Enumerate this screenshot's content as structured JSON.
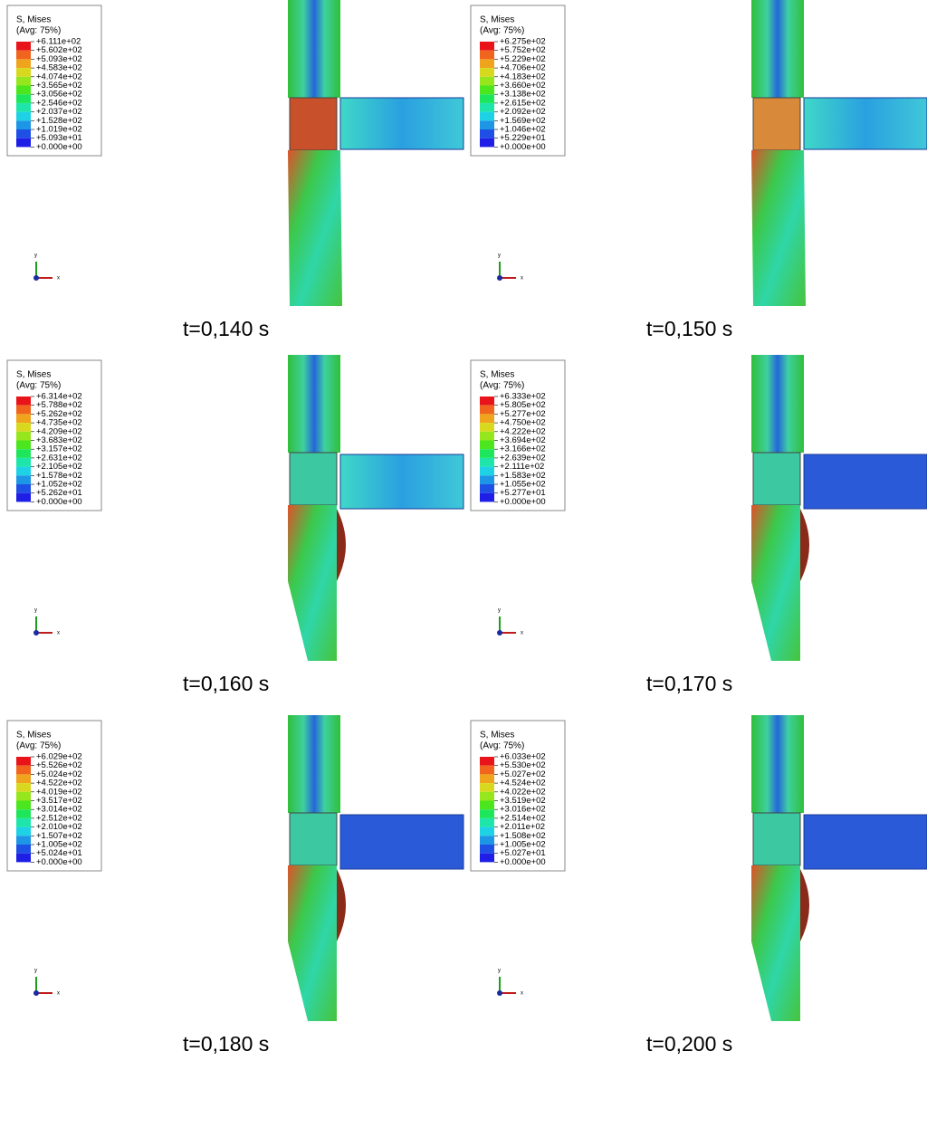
{
  "panels": [
    {
      "legend": {
        "title": "S, Mises",
        "subtitle": "(Avg: 75%)",
        "labels": [
          "+6.111e+02",
          "+5.602e+02",
          "+5.093e+02",
          "+4.583e+02",
          "+4.074e+02",
          "+3.565e+02",
          "+3.056e+02",
          "+2.546e+02",
          "+2.037e+02",
          "+1.528e+02",
          "+1.019e+02",
          "+5.093e+01",
          "+0.000e+00"
        ]
      },
      "axes": {
        "x": "x",
        "y": "y"
      },
      "time": "t=0,140 s"
    },
    {
      "legend": {
        "title": "S, Mises",
        "subtitle": "(Avg: 75%)",
        "labels": [
          "+6.275e+02",
          "+5.752e+02",
          "+5.229e+02",
          "+4.706e+02",
          "+4.183e+02",
          "+3.660e+02",
          "+3.138e+02",
          "+2.615e+02",
          "+2.092e+02",
          "+1.569e+02",
          "+1.046e+02",
          "+5.229e+01",
          "+0.000e+00"
        ]
      },
      "axes": {
        "x": "x",
        "y": "y"
      },
      "time": "t=0,150 s"
    },
    {
      "legend": {
        "title": "S, Mises",
        "subtitle": "(Avg: 75%)",
        "labels": [
          "+6.314e+02",
          "+5.788e+02",
          "+5.262e+02",
          "+4.735e+02",
          "+4.209e+02",
          "+3.683e+02",
          "+3.157e+02",
          "+2.631e+02",
          "+2.105e+02",
          "+1.578e+02",
          "+1.052e+02",
          "+5.262e+01",
          "+0.000e+00"
        ]
      },
      "axes": {
        "x": "x",
        "y": "y"
      },
      "time": "t=0,160 s"
    },
    {
      "legend": {
        "title": "S, Mises",
        "subtitle": "(Avg: 75%)",
        "labels": [
          "+6.333e+02",
          "+5.805e+02",
          "+5.277e+02",
          "+4.750e+02",
          "+4.222e+02",
          "+3.694e+02",
          "+3.166e+02",
          "+2.639e+02",
          "+2.111e+02",
          "+1.583e+02",
          "+1.055e+02",
          "+5.277e+01",
          "+0.000e+00"
        ]
      },
      "axes": {
        "x": "x",
        "y": "y"
      },
      "time": "t=0,170 s"
    },
    {
      "legend": {
        "title": "S, Mises",
        "subtitle": "(Avg: 75%)",
        "labels": [
          "+6.029e+02",
          "+5.526e+02",
          "+5.024e+02",
          "+4.522e+02",
          "+4.019e+02",
          "+3.517e+02",
          "+3.014e+02",
          "+2.512e+02",
          "+2.010e+02",
          "+1.507e+02",
          "+1.005e+02",
          "+5.024e+01",
          "+0.000e+00"
        ]
      },
      "axes": {
        "x": "x",
        "y": "y"
      },
      "time": "t=0,180 s"
    },
    {
      "legend": {
        "title": "S, Mises",
        "subtitle": "(Avg: 75%)",
        "labels": [
          "+6.033e+02",
          "+5.530e+02",
          "+5.027e+02",
          "+4.524e+02",
          "+4.022e+02",
          "+3.519e+02",
          "+3.016e+02",
          "+2.514e+02",
          "+2.011e+02",
          "+1.508e+02",
          "+1.005e+02",
          "+5.027e+01",
          "+0.000e+00"
        ]
      },
      "axes": {
        "x": "x",
        "y": "y"
      },
      "time": "t=0,200 s"
    }
  ]
}
